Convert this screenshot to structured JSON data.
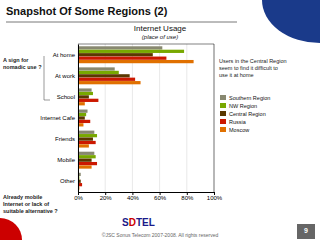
{
  "slide_title": "Snapshot Of Some Regions (2)",
  "logo": [
    "S",
    "D",
    "TEL"
  ],
  "page_number": "9",
  "footer": "©JSC Sonus Telecom 2007-2008. All rights reserved",
  "chart_data": {
    "type": "bar",
    "orientation": "horizontal",
    "title": "Internet Usage",
    "subtitle": "(place of use)",
    "categories": [
      "At home",
      "At work",
      "School",
      "Internet Cafe",
      "Friends",
      "Mobile",
      "Other"
    ],
    "series": [
      {
        "name": "Southern Region",
        "color": "#888870",
        "values": [
          62,
          27,
          10,
          7,
          12,
          12,
          2
        ]
      },
      {
        "name": "NW Region",
        "color": "#78a800",
        "values": [
          78,
          30,
          11,
          6,
          14,
          13,
          1
        ]
      },
      {
        "name": "Central Region",
        "color": "#5a3800",
        "values": [
          55,
          38,
          8,
          5,
          11,
          10,
          2
        ]
      },
      {
        "name": "Russia",
        "color": "#cc1800",
        "values": [
          65,
          42,
          15,
          9,
          13,
          14,
          3
        ]
      },
      {
        "name": "Moscow",
        "color": "#e07000",
        "values": [
          85,
          46,
          5,
          4,
          8,
          10,
          1
        ]
      }
    ],
    "xlim": [
      0,
      100
    ],
    "xticks": [
      {
        "value": 0,
        "label": "0%"
      },
      {
        "value": 20,
        "label": "20%"
      },
      {
        "value": 40,
        "label": "40%"
      },
      {
        "value": 60,
        "label": "60%"
      },
      {
        "value": 80,
        "label": "80%"
      },
      {
        "value": 100,
        "label": "100%"
      }
    ],
    "grid": true,
    "legend": "right",
    "annotations": [
      "A sign for\nnomadic use ?",
      "Already mobile\nInternet or lack of\nsuitable alternative ?",
      "Users in the Central Region\nseem to find it difficult to\nuse it at home"
    ]
  }
}
